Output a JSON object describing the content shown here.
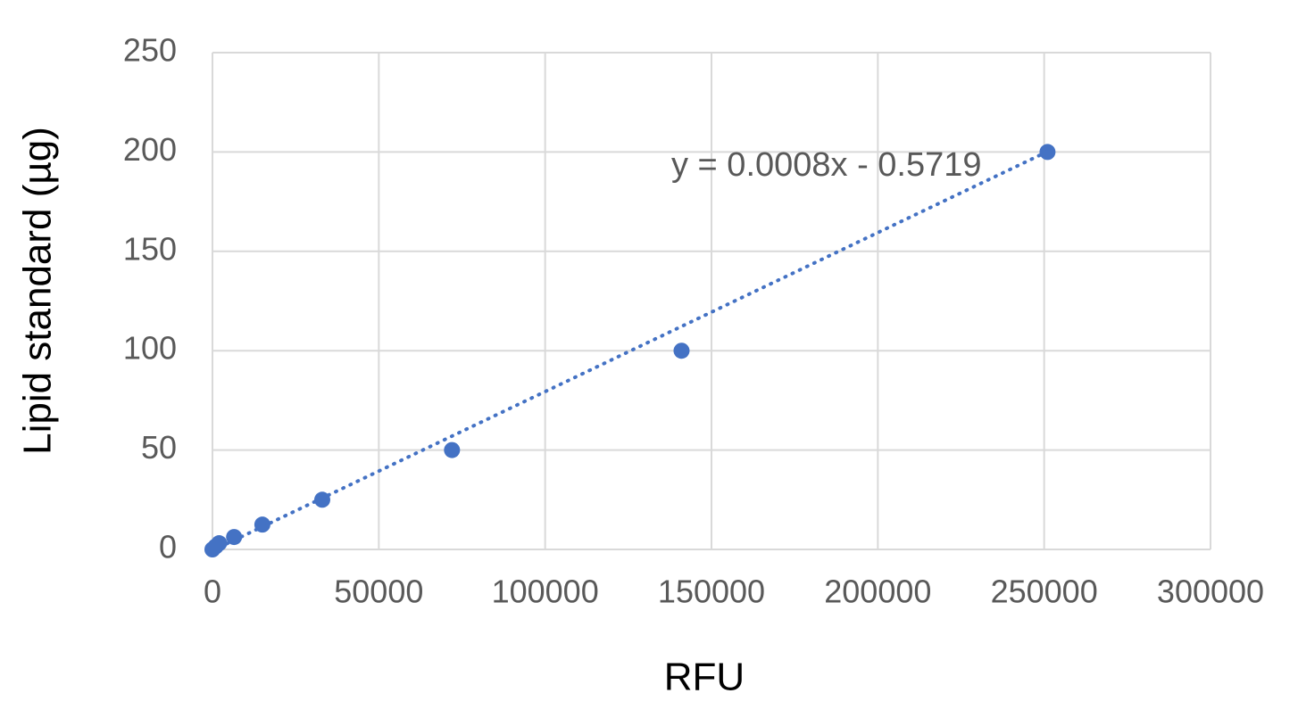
{
  "chart_data": {
    "type": "scatter",
    "x_label": "RFU",
    "y_label": "Lipid standard (µg)",
    "series": [
      {
        "name": "Lipid standard",
        "color": "#4472c4",
        "x": [
          0,
          1000,
          2000,
          6500,
          15000,
          33000,
          72000,
          141000,
          251000
        ],
        "values": [
          0,
          1.56,
          3.125,
          6.25,
          12.5,
          25,
          50,
          100,
          200
        ]
      }
    ],
    "trendline": {
      "label": "y = 0.0008x - 0.5719",
      "slope": 0.0008,
      "intercept": -0.5719,
      "color": "#4472c4"
    },
    "xlim": [
      0,
      300000
    ],
    "xticks": [
      0,
      50000,
      100000,
      150000,
      200000,
      250000,
      300000
    ],
    "ylim": [
      0,
      250
    ],
    "yticks": [
      0,
      50,
      100,
      150,
      200,
      250
    ],
    "grid": true
  }
}
